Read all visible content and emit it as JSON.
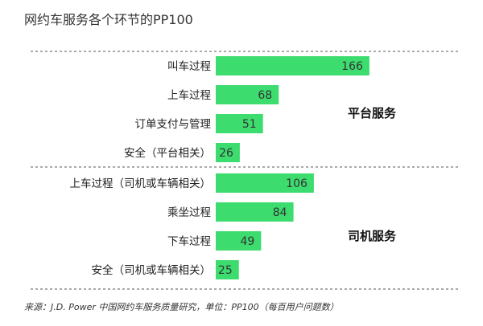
{
  "chart_data": {
    "type": "bar",
    "orientation": "horizontal",
    "title": "网约车服务各个环节的PP100",
    "bar_color": "#3ddc6f",
    "groups": [
      {
        "name": "平台服务",
        "categories": [
          "叫车过程",
          "上车过程",
          "订单支付与管理",
          "安全（平台相关）"
        ],
        "values": [
          166,
          68,
          51,
          26
        ]
      },
      {
        "name": "司机服务",
        "categories": [
          "上车过程（司机或车辆相关）",
          "乘坐过程",
          "下车过程",
          "安全（司机或车辆相关）"
        ],
        "values": [
          106,
          84,
          49,
          25
        ]
      }
    ],
    "source": "来源：J.D. Power 中国网约车服务质量研究，单位：PP100（每百用户问题数）"
  }
}
